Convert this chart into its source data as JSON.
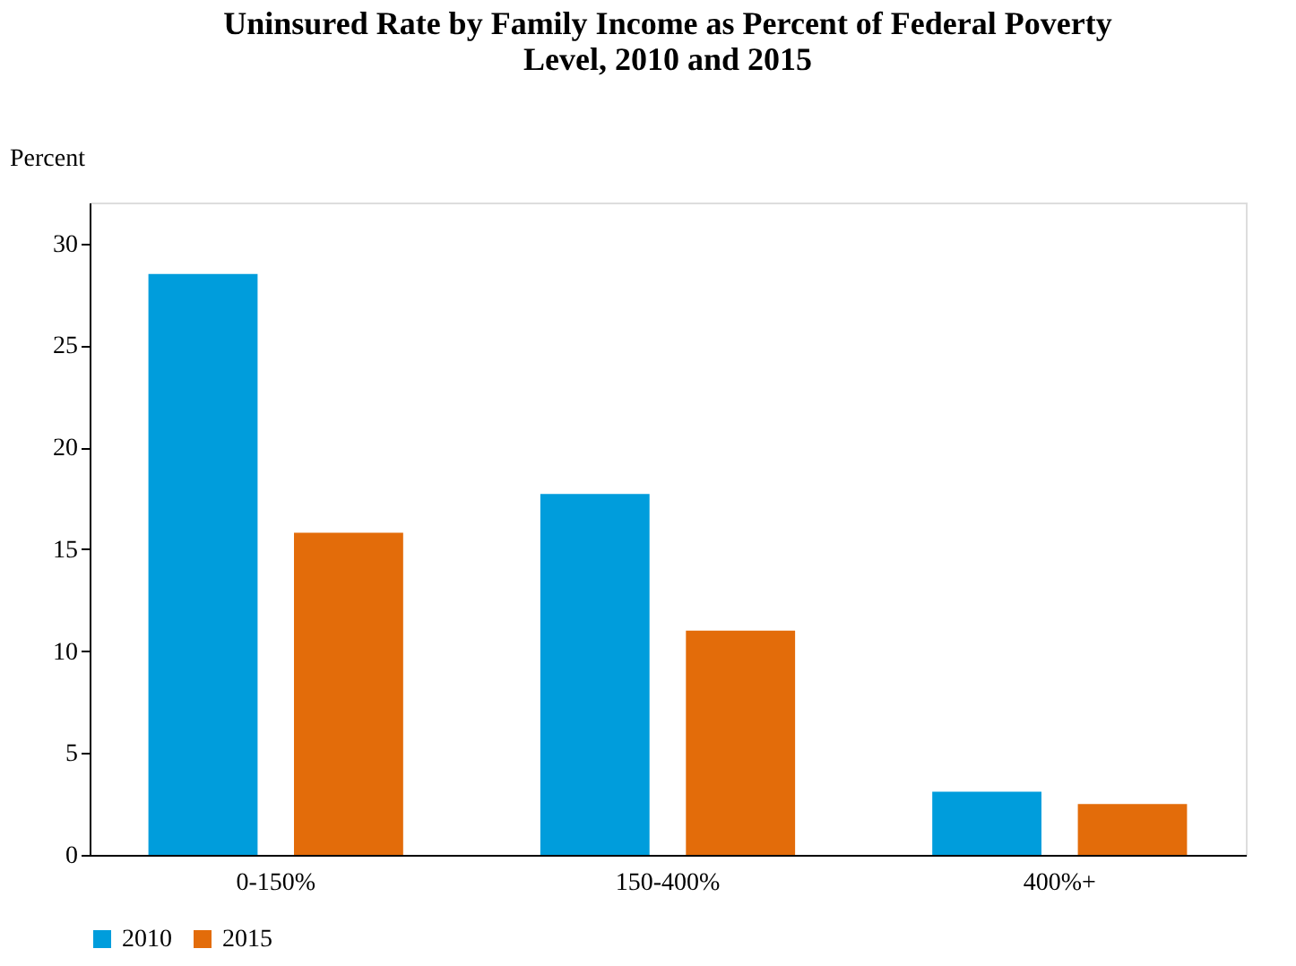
{
  "chart_data": {
    "type": "bar",
    "title": "Uninsured Rate by Family Income as Percent of Federal Poverty Level, 2010 and 2015",
    "ylabel": "Percent",
    "categories": [
      "0-150%",
      "150-400%",
      "400%+"
    ],
    "series": [
      {
        "name": "2010",
        "color": "#009ddc",
        "values": [
          28.5,
          17.7,
          3.1
        ]
      },
      {
        "name": "2015",
        "color": "#e36c0a",
        "values": [
          15.8,
          11.0,
          2.5
        ]
      }
    ],
    "ylim": [
      0,
      32
    ],
    "yticks": [
      0,
      5,
      10,
      15,
      20,
      25,
      30
    ],
    "grid": false,
    "legend": "bottom"
  }
}
